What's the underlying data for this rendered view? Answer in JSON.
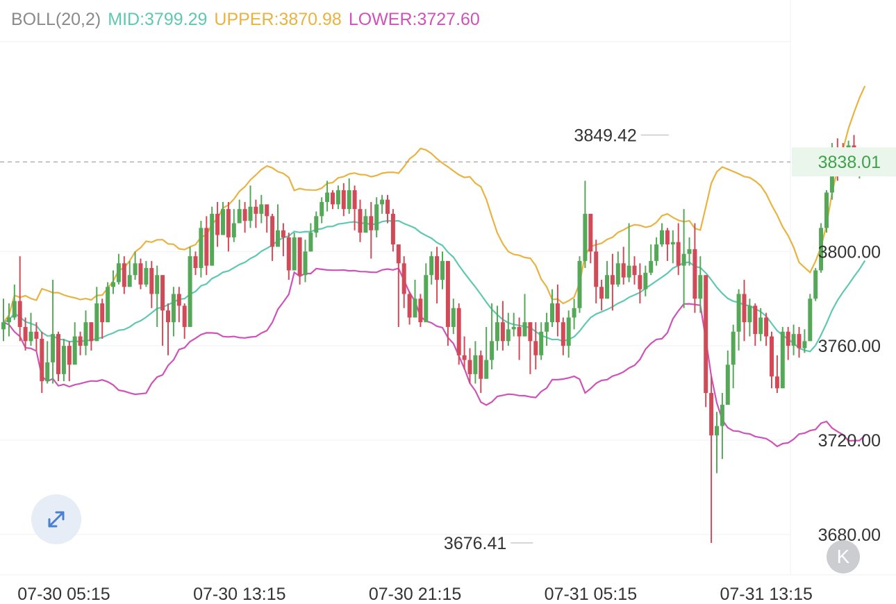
{
  "indicator": {
    "name": "BOLL(20,2)",
    "mid": "MID:3799.29",
    "upper": "UPPER:3870.98",
    "lower": "LOWER:3727.60"
  },
  "colors": {
    "mid": "#5ec8b0",
    "upper": "#e8b340",
    "lower": "#cf52b8",
    "up_candle": "#54a857",
    "down_candle": "#d14a57",
    "grid": "#eef1f5",
    "axis_text": "#333333",
    "last_price_bg": "#eaf6ec",
    "last_price_text": "#3fa24b",
    "legend_name": "#8a8a8a"
  },
  "icons": {
    "expand": "expand-arrows-icon",
    "kline": "k-logo-icon"
  },
  "kline_logo_text": "K",
  "chart_data": {
    "type": "candlestick",
    "title": "",
    "ylim": [
      3672,
      3884
    ],
    "y_ticks": [
      {
        "value": 3800,
        "label": "3800.00"
      },
      {
        "value": 3760,
        "label": "3760.00"
      },
      {
        "value": 3720,
        "label": "3720.00"
      },
      {
        "value": 3680,
        "label": "3680.00"
      }
    ],
    "x_ticks": [
      {
        "index": 10,
        "label": "07-30 05:15"
      },
      {
        "index": 42,
        "label": "07-30 13:15"
      },
      {
        "index": 74,
        "label": "07-30 21:15"
      },
      {
        "index": 106,
        "label": "07-31 05:15"
      },
      {
        "index": 138,
        "label": "07-31 13:15"
      }
    ],
    "last_price": {
      "value": 3838.01,
      "label": "3838.01"
    },
    "high_marker": {
      "index": 122,
      "value": 3849.42,
      "label": "3849.42"
    },
    "low_marker": {
      "index": 97,
      "value": 3676.41,
      "label": "3676.41"
    },
    "candles": [
      {
        "c": 3770,
        "h": 3780,
        "l": 3762
      },
      {
        "c": 3772,
        "h": 3778,
        "l": 3764
      },
      {
        "c": 3779,
        "h": 3786,
        "l": 3771
      },
      {
        "c": 3768,
        "h": 3798,
        "l": 3762
      },
      {
        "c": 3762,
        "h": 3772,
        "l": 3758
      },
      {
        "c": 3766,
        "h": 3774,
        "l": 3760
      },
      {
        "c": 3763,
        "h": 3770,
        "l": 3758
      },
      {
        "c": 3745,
        "h": 3766,
        "l": 3740
      },
      {
        "c": 3753,
        "h": 3762,
        "l": 3744
      },
      {
        "c": 3765,
        "h": 3788,
        "l": 3744
      },
      {
        "c": 3748,
        "h": 3766,
        "l": 3745
      },
      {
        "c": 3760,
        "h": 3763,
        "l": 3745
      },
      {
        "c": 3752,
        "h": 3762,
        "l": 3745
      },
      {
        "c": 3764,
        "h": 3770,
        "l": 3755
      },
      {
        "c": 3760,
        "h": 3766,
        "l": 3756
      },
      {
        "c": 3770,
        "h": 3775,
        "l": 3756
      },
      {
        "c": 3762,
        "h": 3770,
        "l": 3758
      },
      {
        "c": 3778,
        "h": 3785,
        "l": 3762
      },
      {
        "c": 3770,
        "h": 3780,
        "l": 3763
      },
      {
        "c": 3785,
        "h": 3787,
        "l": 3770
      },
      {
        "c": 3787,
        "h": 3792,
        "l": 3782
      },
      {
        "c": 3795,
        "h": 3799,
        "l": 3786
      },
      {
        "c": 3785,
        "h": 3798,
        "l": 3782
      },
      {
        "c": 3790,
        "h": 3796,
        "l": 3785
      },
      {
        "c": 3795,
        "h": 3800,
        "l": 3788
      },
      {
        "c": 3786,
        "h": 3797,
        "l": 3784
      },
      {
        "c": 3793,
        "h": 3796,
        "l": 3785
      },
      {
        "c": 3782,
        "h": 3796,
        "l": 3776
      },
      {
        "c": 3790,
        "h": 3794,
        "l": 3768
      },
      {
        "c": 3775,
        "h": 3790,
        "l": 3760
      },
      {
        "c": 3770,
        "h": 3778,
        "l": 3756
      },
      {
        "c": 3782,
        "h": 3785,
        "l": 3764
      },
      {
        "c": 3777,
        "h": 3785,
        "l": 3770
      },
      {
        "c": 3768,
        "h": 3778,
        "l": 3763
      },
      {
        "c": 3798,
        "h": 3802,
        "l": 3776
      },
      {
        "c": 3793,
        "h": 3800,
        "l": 3790
      },
      {
        "c": 3810,
        "h": 3813,
        "l": 3789
      },
      {
        "c": 3794,
        "h": 3815,
        "l": 3790
      },
      {
        "c": 3816,
        "h": 3819,
        "l": 3794
      },
      {
        "c": 3807,
        "h": 3821,
        "l": 3802
      },
      {
        "c": 3818,
        "h": 3821,
        "l": 3807
      },
      {
        "c": 3806,
        "h": 3821,
        "l": 3800
      },
      {
        "c": 3812,
        "h": 3818,
        "l": 3804
      },
      {
        "c": 3818,
        "h": 3822,
        "l": 3812
      },
      {
        "c": 3813,
        "h": 3821,
        "l": 3808
      },
      {
        "c": 3819,
        "h": 3828,
        "l": 3810
      },
      {
        "c": 3816,
        "h": 3822,
        "l": 3810
      },
      {
        "c": 3820,
        "h": 3824,
        "l": 3812
      },
      {
        "c": 3815,
        "h": 3816,
        "l": 3808
      },
      {
        "c": 3802,
        "h": 3816,
        "l": 3796
      },
      {
        "c": 3809,
        "h": 3820,
        "l": 3805
      },
      {
        "c": 3806,
        "h": 3812,
        "l": 3798
      },
      {
        "c": 3792,
        "h": 3808,
        "l": 3788
      },
      {
        "c": 3806,
        "h": 3808,
        "l": 3792
      },
      {
        "c": 3790,
        "h": 3806,
        "l": 3786
      },
      {
        "c": 3800,
        "h": 3805,
        "l": 3787
      },
      {
        "c": 3808,
        "h": 3812,
        "l": 3800
      },
      {
        "c": 3815,
        "h": 3817,
        "l": 3806
      },
      {
        "c": 3821,
        "h": 3823,
        "l": 3812
      },
      {
        "c": 3825,
        "h": 3830,
        "l": 3817
      },
      {
        "c": 3820,
        "h": 3826,
        "l": 3818
      },
      {
        "c": 3826,
        "h": 3828,
        "l": 3818
      },
      {
        "c": 3818,
        "h": 3829,
        "l": 3815
      },
      {
        "c": 3826,
        "h": 3831,
        "l": 3816
      },
      {
        "c": 3818,
        "h": 3828,
        "l": 3809
      },
      {
        "c": 3808,
        "h": 3822,
        "l": 3804
      },
      {
        "c": 3815,
        "h": 3818,
        "l": 3808
      },
      {
        "c": 3809,
        "h": 3821,
        "l": 3797
      },
      {
        "c": 3820,
        "h": 3823,
        "l": 3806
      },
      {
        "c": 3822,
        "h": 3824,
        "l": 3816
      },
      {
        "c": 3816,
        "h": 3824,
        "l": 3812
      },
      {
        "c": 3803,
        "h": 3818,
        "l": 3800
      },
      {
        "c": 3795,
        "h": 3803,
        "l": 3768
      },
      {
        "c": 3782,
        "h": 3798,
        "l": 3776
      },
      {
        "c": 3772,
        "h": 3783,
        "l": 3769
      },
      {
        "c": 3780,
        "h": 3788,
        "l": 3773
      },
      {
        "c": 3770,
        "h": 3782,
        "l": 3768
      },
      {
        "c": 3790,
        "h": 3795,
        "l": 3776
      },
      {
        "c": 3798,
        "h": 3800,
        "l": 3786
      },
      {
        "c": 3788,
        "h": 3802,
        "l": 3778
      },
      {
        "c": 3796,
        "h": 3800,
        "l": 3784
      },
      {
        "c": 3768,
        "h": 3795,
        "l": 3760
      },
      {
        "c": 3776,
        "h": 3780,
        "l": 3765
      },
      {
        "c": 3756,
        "h": 3778,
        "l": 3752
      },
      {
        "c": 3754,
        "h": 3764,
        "l": 3750
      },
      {
        "c": 3748,
        "h": 3759,
        "l": 3744
      },
      {
        "c": 3756,
        "h": 3762,
        "l": 3744
      },
      {
        "c": 3746,
        "h": 3758,
        "l": 3740
      },
      {
        "c": 3754,
        "h": 3768,
        "l": 3746
      },
      {
        "c": 3762,
        "h": 3778,
        "l": 3750
      },
      {
        "c": 3770,
        "h": 3777,
        "l": 3758
      },
      {
        "c": 3762,
        "h": 3779,
        "l": 3758
      },
      {
        "c": 3767,
        "h": 3774,
        "l": 3760
      },
      {
        "c": 3768,
        "h": 3774,
        "l": 3764
      },
      {
        "c": 3764,
        "h": 3772,
        "l": 3754
      },
      {
        "c": 3770,
        "h": 3782,
        "l": 3764
      },
      {
        "c": 3762,
        "h": 3770,
        "l": 3748
      },
      {
        "c": 3756,
        "h": 3770,
        "l": 3750
      },
      {
        "c": 3766,
        "h": 3770,
        "l": 3754
      },
      {
        "c": 3770,
        "h": 3774,
        "l": 3760
      },
      {
        "c": 3778,
        "h": 3784,
        "l": 3768
      },
      {
        "c": 3770,
        "h": 3786,
        "l": 3764
      },
      {
        "c": 3760,
        "h": 3772,
        "l": 3756
      },
      {
        "c": 3772,
        "h": 3775,
        "l": 3755
      },
      {
        "c": 3776,
        "h": 3780,
        "l": 3767
      },
      {
        "c": 3796,
        "h": 3798,
        "l": 3774
      },
      {
        "c": 3816,
        "h": 3830,
        "l": 3793
      },
      {
        "c": 3800,
        "h": 3815,
        "l": 3795
      },
      {
        "c": 3785,
        "h": 3805,
        "l": 3778
      },
      {
        "c": 3780,
        "h": 3788,
        "l": 3775
      },
      {
        "c": 3790,
        "h": 3796,
        "l": 3780
      },
      {
        "c": 3786,
        "h": 3799,
        "l": 3775
      },
      {
        "c": 3795,
        "h": 3800,
        "l": 3785
      },
      {
        "c": 3789,
        "h": 3802,
        "l": 3786
      },
      {
        "c": 3794,
        "h": 3812,
        "l": 3787
      },
      {
        "c": 3790,
        "h": 3798,
        "l": 3786
      },
      {
        "c": 3784,
        "h": 3795,
        "l": 3778
      },
      {
        "c": 3791,
        "h": 3794,
        "l": 3781
      },
      {
        "c": 3796,
        "h": 3803,
        "l": 3790
      },
      {
        "c": 3803,
        "h": 3806,
        "l": 3794
      },
      {
        "c": 3809,
        "h": 3812,
        "l": 3802
      },
      {
        "c": 3803,
        "h": 3810,
        "l": 3796
      },
      {
        "c": 3804,
        "h": 3809,
        "l": 3795
      },
      {
        "c": 3794,
        "h": 3812,
        "l": 3790
      },
      {
        "c": 3799,
        "h": 3818,
        "l": 3776
      },
      {
        "c": 3801,
        "h": 3806,
        "l": 3794
      },
      {
        "c": 3780,
        "h": 3812,
        "l": 3774
      },
      {
        "c": 3790,
        "h": 3798,
        "l": 3774
      },
      {
        "c": 3740,
        "h": 3790,
        "l": 3734
      },
      {
        "c": 3722,
        "h": 3747,
        "l": 3676.41
      },
      {
        "c": 3726,
        "h": 3732,
        "l": 3706
      },
      {
        "c": 3735,
        "h": 3740,
        "l": 3712
      },
      {
        "c": 3752,
        "h": 3758,
        "l": 3735
      },
      {
        "c": 3766,
        "h": 3769,
        "l": 3742
      },
      {
        "c": 3782,
        "h": 3784,
        "l": 3758
      },
      {
        "c": 3770,
        "h": 3788,
        "l": 3762
      },
      {
        "c": 3777,
        "h": 3780,
        "l": 3764
      },
      {
        "c": 3765,
        "h": 3778,
        "l": 3760
      },
      {
        "c": 3772,
        "h": 3776,
        "l": 3762
      },
      {
        "c": 3764,
        "h": 3774,
        "l": 3760
      },
      {
        "c": 3747,
        "h": 3766,
        "l": 3742
      },
      {
        "c": 3742,
        "h": 3756,
        "l": 3740
      },
      {
        "c": 3766,
        "h": 3768,
        "l": 3742
      },
      {
        "c": 3760,
        "h": 3768,
        "l": 3754
      },
      {
        "c": 3765,
        "h": 3769,
        "l": 3756
      },
      {
        "c": 3759,
        "h": 3768,
        "l": 3755
      },
      {
        "c": 3762,
        "h": 3767,
        "l": 3757
      },
      {
        "c": 3780,
        "h": 3782,
        "l": 3762
      },
      {
        "c": 3792,
        "h": 3793,
        "l": 3779
      },
      {
        "c": 3810,
        "h": 3812,
        "l": 3791
      },
      {
        "c": 3825,
        "h": 3826,
        "l": 3808
      },
      {
        "c": 3844,
        "h": 3846,
        "l": 3822
      },
      {
        "c": 3838,
        "h": 3848,
        "l": 3830
      },
      {
        "c": 3836,
        "h": 3846,
        "l": 3834
      },
      {
        "c": 3845,
        "h": 3847,
        "l": 3836
      },
      {
        "c": 3838,
        "h": 3849.42,
        "l": 3832
      },
      {
        "c": 3840,
        "h": 3844,
        "l": 3831
      },
      {
        "c": 3838.01,
        "h": 3841,
        "l": 3836
      }
    ]
  }
}
